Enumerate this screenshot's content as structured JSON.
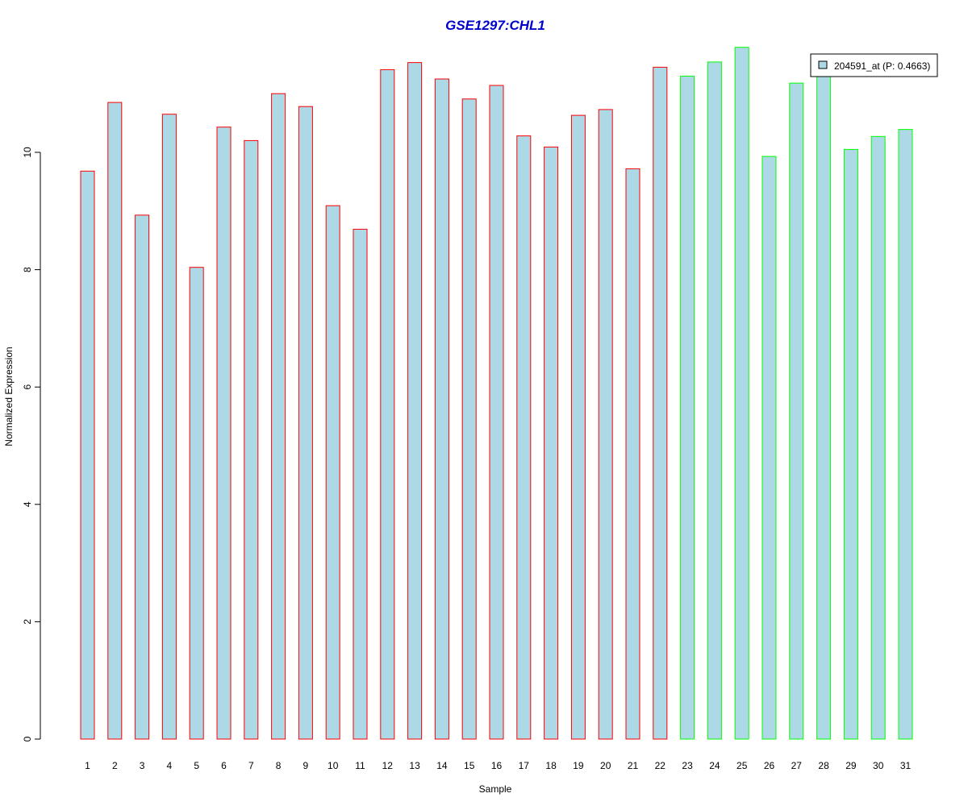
{
  "chart_data": {
    "type": "bar",
    "title": "GSE1297:CHL1",
    "xlabel": "Sample",
    "ylabel": "Normalized Expression",
    "ylim": [
      0,
      12
    ],
    "yticks": [
      "0",
      "2",
      "4",
      "6",
      "8",
      "10"
    ],
    "grid": false,
    "legend_position": "top-right",
    "legend_label": "204591_at (P: 0.4663)",
    "categories": [
      "1",
      "2",
      "3",
      "4",
      "5",
      "6",
      "7",
      "8",
      "9",
      "10",
      "11",
      "12",
      "13",
      "14",
      "15",
      "16",
      "17",
      "18",
      "19",
      "20",
      "21",
      "22",
      "23",
      "24",
      "25",
      "26",
      "27",
      "28",
      "29",
      "30",
      "31"
    ],
    "series": [
      {
        "name": "204591_at (P: 0.4663)",
        "values": [
          9.68,
          10.85,
          8.93,
          10.65,
          8.04,
          10.43,
          10.2,
          11.0,
          10.78,
          9.09,
          8.69,
          11.41,
          11.53,
          11.25,
          10.91,
          11.14,
          10.28,
          10.09,
          10.63,
          10.73,
          9.72,
          11.45,
          11.3,
          11.54,
          11.79,
          9.93,
          11.18,
          11.37,
          10.05,
          10.27,
          10.39
        ]
      }
    ],
    "groups": [
      "red",
      "red",
      "red",
      "red",
      "red",
      "red",
      "red",
      "red",
      "red",
      "red",
      "red",
      "red",
      "red",
      "red",
      "red",
      "red",
      "red",
      "red",
      "red",
      "red",
      "red",
      "red",
      "green",
      "green",
      "green",
      "green",
      "green",
      "green",
      "green",
      "green",
      "green"
    ],
    "colors": {
      "bar_fill": "#add8e6",
      "red": "#ff0000",
      "green": "#00ff00",
      "title": "#0000cc",
      "axis": "#000000"
    }
  }
}
